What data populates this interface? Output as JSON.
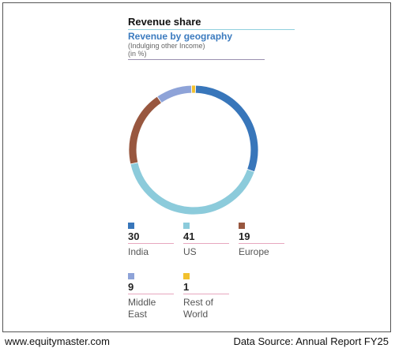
{
  "header": {
    "title": "Revenue share",
    "subtitle": "Revenue by geography",
    "note1": "(Indulging other Income)",
    "note2": "(in %)"
  },
  "chart_data": {
    "type": "pie",
    "categories": [
      "India",
      "US",
      "Europe",
      "Middle East",
      "Rest of World"
    ],
    "values": [
      30,
      41,
      19,
      9,
      1
    ],
    "colors": [
      "#3876ba",
      "#8ccbdb",
      "#98573f",
      "#8ea3d8",
      "#f2c12e"
    ],
    "title": "Revenue by geography"
  },
  "legend": [
    {
      "value": "30",
      "label": "India",
      "color": "#3876ba"
    },
    {
      "value": "41",
      "label": "US",
      "color": "#8ccbdb"
    },
    {
      "value": "19",
      "label": "Europe",
      "color": "#98573f"
    },
    {
      "value": "9",
      "label": "Middle East",
      "color": "#8ea3d8"
    },
    {
      "value": "1",
      "label": "Rest of World",
      "color": "#f2c12e"
    }
  ],
  "footer": {
    "website": "www.equitymaster.com",
    "source": "Data Source: Annual Report FY25"
  }
}
